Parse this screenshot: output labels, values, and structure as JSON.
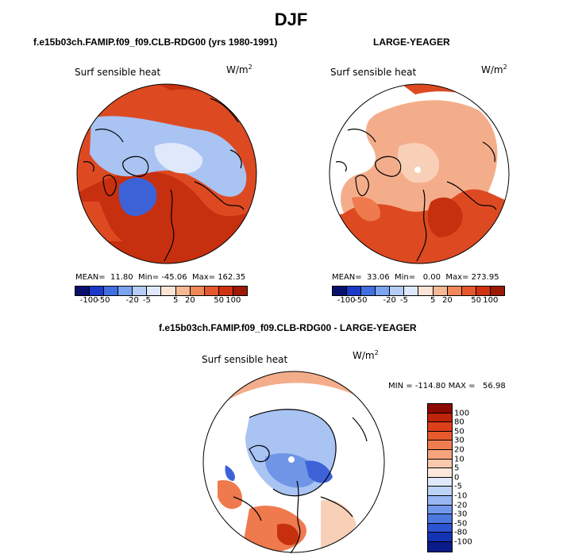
{
  "figure": {
    "season": "DJF"
  },
  "panels": [
    {
      "title": "f.e15b03ch.FAMIP.f09_f09.CLB-RDG00 (yrs 1980-1991)",
      "variable": "Surf sensible heat",
      "units_base": "W/m",
      "units_exp": "2",
      "stats": {
        "mean_label": "MEAN=",
        "mean": "11.80",
        "min_label": "Min=",
        "min": "-45.06",
        "max_label": "Max=",
        "max": "162.35"
      }
    },
    {
      "title": "LARGE-YEAGER",
      "variable": "Surf sensible heat",
      "units_base": "W/m",
      "units_exp": "2",
      "stats": {
        "mean_label": "MEAN=",
        "mean": "33.06",
        "min_label": "Min=",
        "min": "0.00",
        "max_label": "Max=",
        "max": "273.95"
      }
    },
    {
      "title": "f.e15b03ch.FAMIP.f09_f09.CLB-RDG00 - LARGE-YEAGER",
      "variable": "Surf sensible heat",
      "units_base": "W/m",
      "units_exp": "2",
      "stats": {
        "min_label": "MIN =",
        "min": "-114.80",
        "max_label": "MAX =",
        "max": "56.98"
      }
    }
  ],
  "colorbar_top": {
    "ticks": [
      "-100",
      "-50",
      "-20",
      "-5",
      "5",
      "20",
      "50",
      "100"
    ],
    "colors": [
      "#08106e",
      "#1a39c8",
      "#3f6fe0",
      "#7aa3f0",
      "#b5cdf7",
      "#dfe9fb",
      "#fbe4d6",
      "#f6b895",
      "#f08858",
      "#e5582c",
      "#d0320f",
      "#9c1a05"
    ]
  },
  "colorbar_diff": {
    "ticks": [
      "100",
      "80",
      "50",
      "30",
      "20",
      "10",
      "5",
      "0",
      "-5",
      "-10",
      "-20",
      "-30",
      "-50",
      "-80",
      "-100"
    ],
    "colors": [
      "#8b0a02",
      "#c0240b",
      "#dd3f18",
      "#e8592d",
      "#f07d4f",
      "#f6a47c",
      "#fac8ad",
      "#fde8dc",
      "#dfe9fb",
      "#bdd3f7",
      "#98b7f2",
      "#7198ea",
      "#4c78e0",
      "#2c54d2",
      "#1434b4",
      "#0a1c8a"
    ]
  },
  "map_colors": {
    "deep_red": "#c7300f",
    "red": "#dd4a22",
    "orange": "#ee7a4e",
    "salmon": "#f4ad8b",
    "peach": "#f8d0b8",
    "pale_blue": "#dfe9fb",
    "light_blue": "#a9c3f3",
    "mid_blue": "#6f95e6",
    "blue": "#3d62d8",
    "coast": "#000000"
  }
}
